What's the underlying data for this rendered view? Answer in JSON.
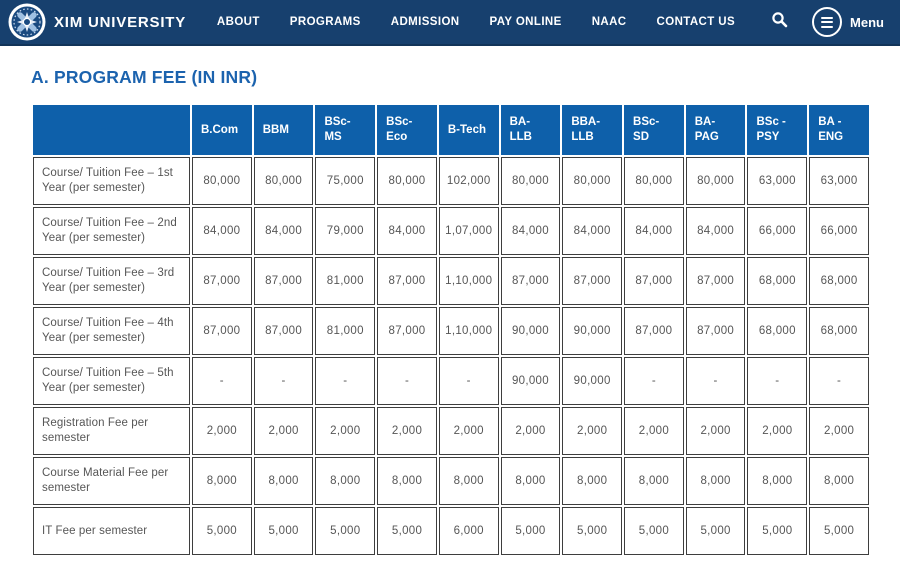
{
  "colors": {
    "navbar_background": "#17406e",
    "table_header_blue": "#0e60aa",
    "heading_blue": "#1c63ae",
    "cell_border": "#3e3e3e",
    "cell_text": "#565656"
  },
  "navbar": {
    "brand": "XIM UNIVERSITY",
    "items": [
      "ABOUT",
      "PROGRAMS",
      "ADMISSION",
      "PAY ONLINE",
      "NAAC",
      "CONTACT US"
    ],
    "icons": [
      "search-icon",
      "hamburger-menu-icon"
    ],
    "menu_label": "Menu"
  },
  "page": {
    "heading": "A. PROGRAM FEE (IN INR)"
  },
  "table": {
    "columns": [
      "B.Com",
      "BBM",
      "BSc-\nMS",
      "BSc-\nEco",
      "B-Tech",
      "BA-\nLLB",
      "BBA-\nLLB",
      "BSc-\nSD",
      "BA-\nPAG",
      "BSc -\nPSY",
      "BA -\nENG"
    ],
    "rows": [
      {
        "label": "Course/ Tuition Fee – 1st Year (per semester)",
        "values": [
          "80,000",
          "80,000",
          "75,000",
          "80,000",
          "102,000",
          "80,000",
          "80,000",
          "80,000",
          "80,000",
          "63,000",
          "63,000"
        ]
      },
      {
        "label": "Course/ Tuition Fee – 2nd Year (per semester)",
        "values": [
          "84,000",
          "84,000",
          "79,000",
          "84,000",
          "1,07,000",
          "84,000",
          "84,000",
          "84,000",
          "84,000",
          "66,000",
          "66,000"
        ]
      },
      {
        "label": "Course/ Tuition Fee – 3rd Year (per semester)",
        "values": [
          "87,000",
          "87,000",
          "81,000",
          "87,000",
          "1,10,000",
          "87,000",
          "87,000",
          "87,000",
          "87,000",
          "68,000",
          "68,000"
        ]
      },
      {
        "label": "Course/ Tuition Fee – 4th Year (per semester)",
        "values": [
          "87,000",
          "87,000",
          "81,000",
          "87,000",
          "1,10,000",
          "90,000",
          "90,000",
          "87,000",
          "87,000",
          "68,000",
          "68,000"
        ]
      },
      {
        "label": "Course/ Tuition Fee – 5th Year (per semester)",
        "values": [
          "-",
          "-",
          "-",
          "-",
          "-",
          "90,000",
          "90,000",
          "-",
          "-",
          "-",
          "-"
        ]
      },
      {
        "label": "Registration Fee per semester",
        "values": [
          "2,000",
          "2,000",
          "2,000",
          "2,000",
          "2,000",
          "2,000",
          "2,000",
          "2,000",
          "2,000",
          "2,000",
          "2,000"
        ]
      },
      {
        "label": "Course Material Fee per semester",
        "values": [
          "8,000",
          "8,000",
          "8,000",
          "8,000",
          "8,000",
          "8,000",
          "8,000",
          "8,000",
          "8,000",
          "8,000",
          "8,000"
        ]
      },
      {
        "label": "IT Fee per semester",
        "values": [
          "5,000",
          "5,000",
          "5,000",
          "5,000",
          "6,000",
          "5,000",
          "5,000",
          "5,000",
          "5,000",
          "5,000",
          "5,000"
        ]
      }
    ]
  }
}
